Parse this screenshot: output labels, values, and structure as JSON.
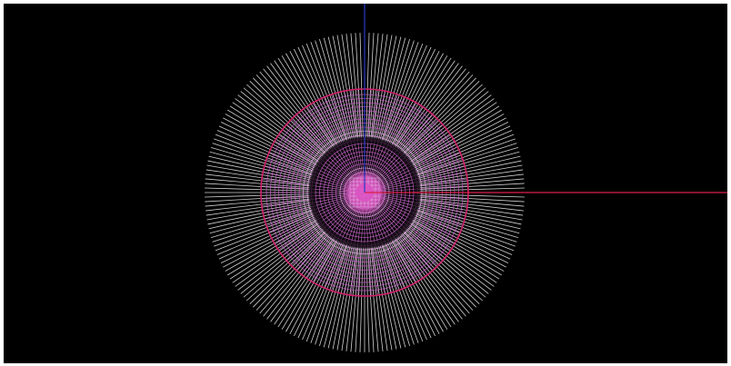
{
  "scene": {
    "background_color": "#000000",
    "frame_color": "#ffffff",
    "axes": [
      {
        "name": "x-axis",
        "color": "#e0204a"
      },
      {
        "name": "y-axis",
        "color": "#2a3cc8"
      }
    ],
    "colors": {
      "outer_ray": "#e8e8e8",
      "mesh_ring": "#c45bc4",
      "mesh_ring_light": "#e6a6e6",
      "mesh_spoke": "#d07ad0",
      "boundary_ring": "#d01f6a",
      "dark_ring": "#1a0f1a",
      "core_fill": "#d84fc0",
      "core_glow": "#ff8ae8",
      "core_grid": "#f4e6f4"
    }
  }
}
